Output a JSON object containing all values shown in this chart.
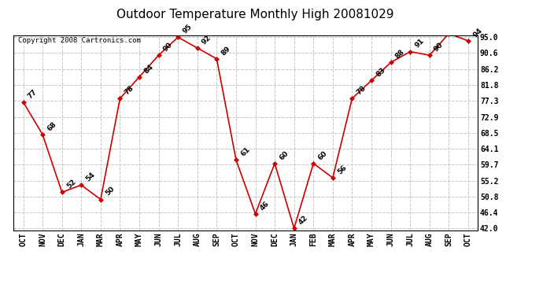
{
  "title": "Outdoor Temperature Monthly High 20081029",
  "copyright": "Copyright 2008 Cartronics.com",
  "data_points": [
    {
      "month": "OCT",
      "val": 77
    },
    {
      "month": "NOV",
      "val": 68
    },
    {
      "month": "DEC",
      "val": 52
    },
    {
      "month": "JAN",
      "val": 54
    },
    {
      "month": "MAR",
      "val": 50
    },
    {
      "month": "APR",
      "val": 78
    },
    {
      "month": "MAY",
      "val": 84
    },
    {
      "month": "JUN",
      "val": 90
    },
    {
      "month": "JUL",
      "val": 95
    },
    {
      "month": "AUG",
      "val": 92
    },
    {
      "month": "SEP",
      "val": 89
    },
    {
      "month": "OCT",
      "val": 61
    },
    {
      "month": "NOV",
      "val": 46
    },
    {
      "month": "DEC",
      "val": 60
    },
    {
      "month": "JAN",
      "val": 42
    },
    {
      "month": "FEB",
      "val": 60
    },
    {
      "month": "MAR",
      "val": 56
    },
    {
      "month": "APR",
      "val": 78
    },
    {
      "month": "MAY",
      "val": 83
    },
    {
      "month": "JUN",
      "val": 88
    },
    {
      "month": "JUL",
      "val": 91
    },
    {
      "month": "AUG",
      "val": 90
    },
    {
      "month": "SEP",
      "val": 96
    },
    {
      "month": "OCT",
      "val": 94
    }
  ],
  "yticks": [
    42.0,
    46.4,
    50.8,
    55.2,
    59.7,
    64.1,
    68.5,
    72.9,
    77.3,
    81.8,
    86.2,
    90.6,
    95.0
  ],
  "ylim_min": 42.0,
  "ylim_max": 95.0,
  "line_color": "#cc0000",
  "marker": "D",
  "marker_size": 3,
  "bg_color": "#ffffff",
  "grid_color": "#c0c0c0",
  "title_fontsize": 11,
  "label_fontsize": 6.5,
  "tick_fontsize": 7,
  "copyright_fontsize": 6.5
}
